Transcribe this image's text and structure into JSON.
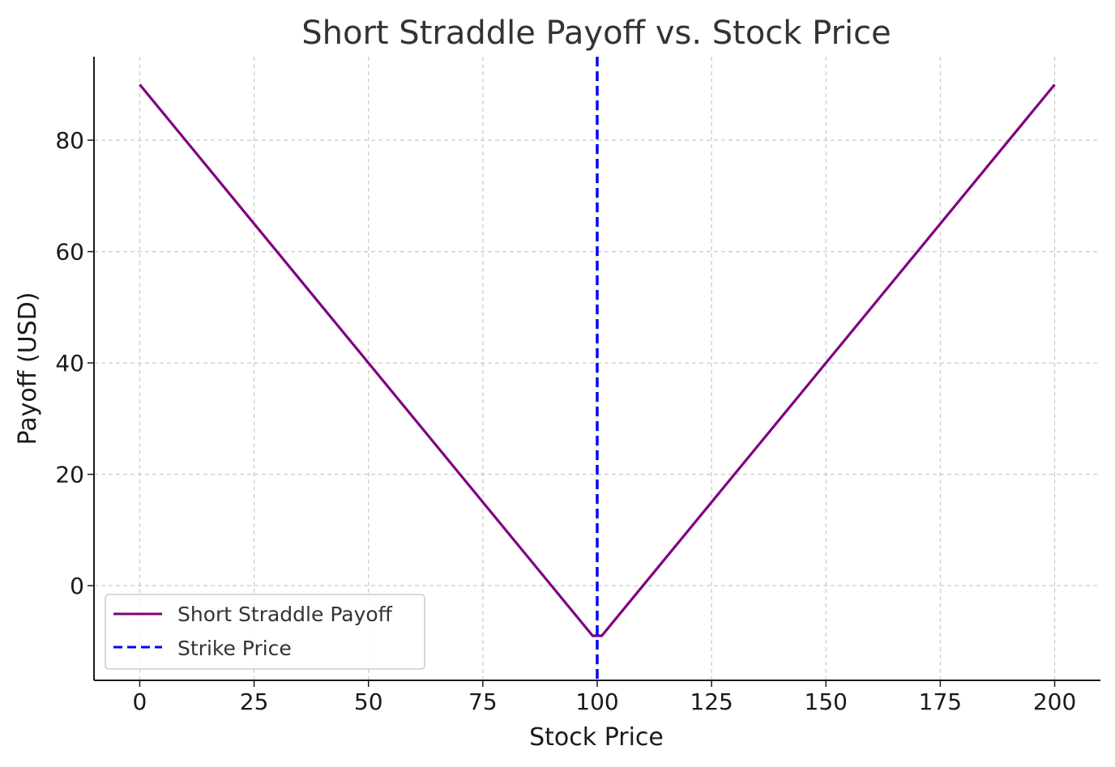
{
  "chart_data": {
    "type": "line",
    "title": "Short Straddle Payoff vs. Stock Price",
    "xlabel": "Stock Price",
    "ylabel": "Payoff (USD)",
    "xlim": [
      -10,
      210
    ],
    "ylim": [
      -17,
      95
    ],
    "xticks": [
      0,
      25,
      50,
      75,
      100,
      125,
      150,
      175,
      200
    ],
    "yticks": [
      0,
      20,
      40,
      60,
      80
    ],
    "grid": true,
    "legend_position": "lower-left",
    "series": [
      {
        "name": "Short Straddle Payoff",
        "color": "#800080",
        "style": "solid",
        "x": [
          0,
          99,
          101,
          200
        ],
        "y": [
          90,
          -9,
          -9,
          90
        ]
      },
      {
        "name": "Strike Price",
        "color": "#0000ff",
        "style": "dashed",
        "vline_x": 100
      }
    ]
  }
}
